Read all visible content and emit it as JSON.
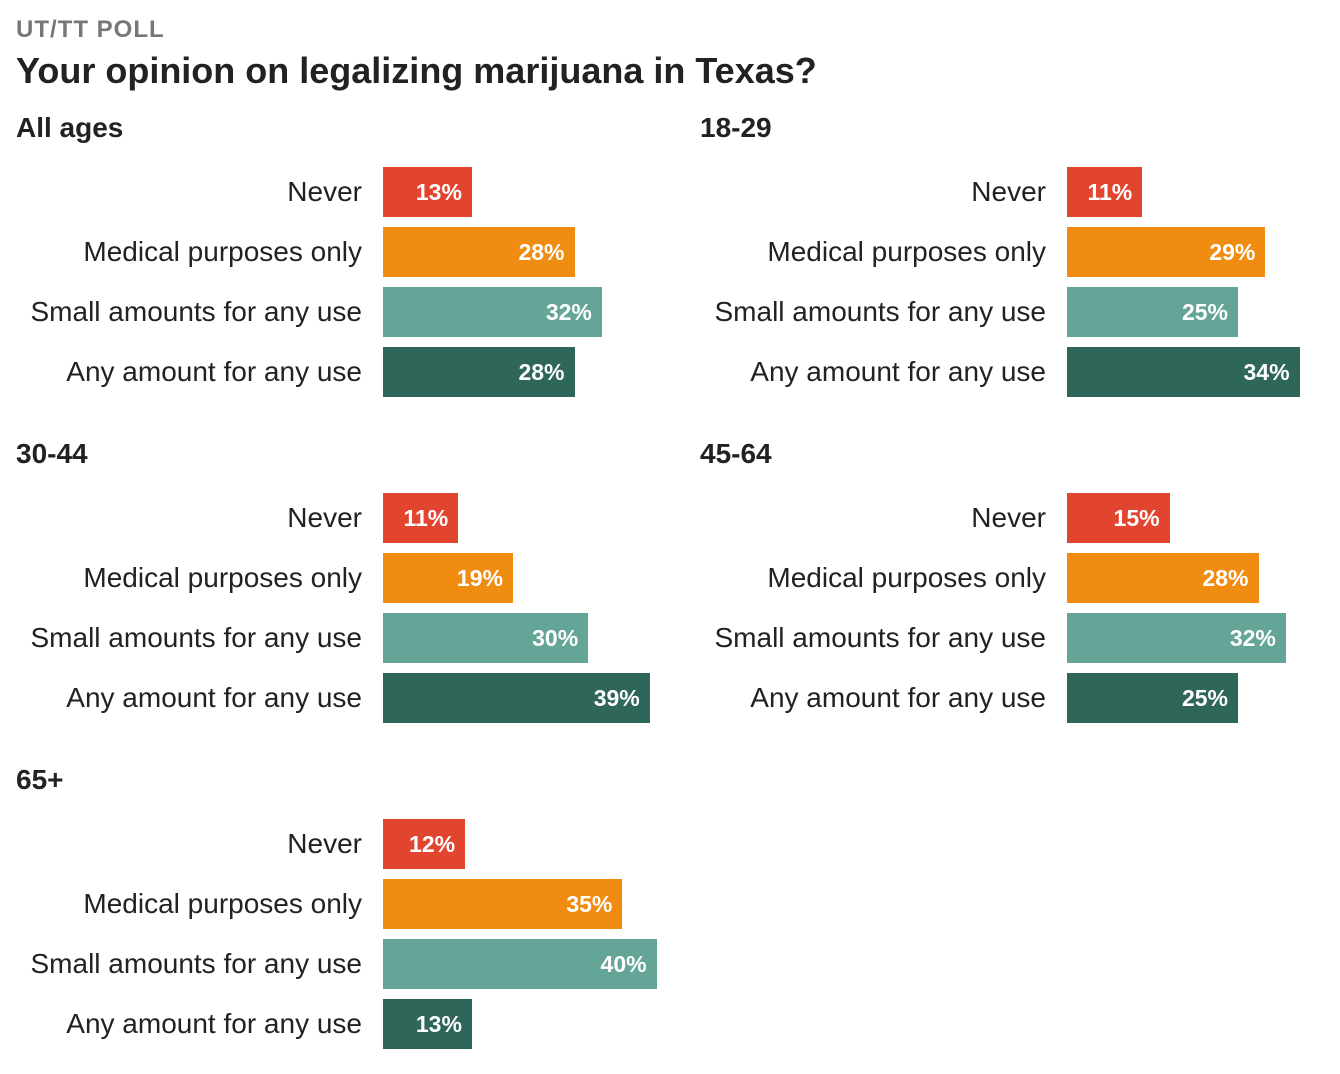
{
  "kicker": "UT/TT POLL",
  "title": "Your opinion on legalizing marijuana in Texas?",
  "colors": {
    "Never": "#e2452f",
    "Medical purposes only": "#f08c10",
    "Small amounts for any use": "#64a598",
    "Any amount for any use": "#2e665a"
  },
  "chart_data": [
    {
      "type": "bar",
      "title": "All ages",
      "categories": [
        "Never",
        "Medical purposes only",
        "Small amounts for any use",
        "Any amount for any use"
      ],
      "values": [
        13,
        28,
        32,
        28
      ],
      "labels": [
        "13%",
        "28%",
        "32%",
        "28%"
      ],
      "xlim": [
        0,
        40
      ]
    },
    {
      "type": "bar",
      "title": "18-29",
      "categories": [
        "Never",
        "Medical purposes only",
        "Small amounts for any use",
        "Any amount for any use"
      ],
      "values": [
        11,
        29,
        25,
        34
      ],
      "labels": [
        "11%",
        "29%",
        "25%",
        "34%"
      ],
      "xlim": [
        0,
        40
      ]
    },
    {
      "type": "bar",
      "title": "30-44",
      "categories": [
        "Never",
        "Medical purposes only",
        "Small amounts for any use",
        "Any amount for any use"
      ],
      "values": [
        11,
        19,
        30,
        39
      ],
      "labels": [
        "11%",
        "19%",
        "30%",
        "39%"
      ],
      "xlim": [
        0,
        40
      ]
    },
    {
      "type": "bar",
      "title": "45-64",
      "categories": [
        "Never",
        "Medical purposes only",
        "Small amounts for any use",
        "Any amount for any use"
      ],
      "values": [
        15,
        28,
        32,
        25
      ],
      "labels": [
        "15%",
        "28%",
        "32%",
        "25%"
      ],
      "xlim": [
        0,
        40
      ]
    },
    {
      "type": "bar",
      "title": "65+",
      "categories": [
        "Never",
        "Medical purposes only",
        "Small amounts for any use",
        "Any amount for any use"
      ],
      "values": [
        12,
        35,
        40,
        13
      ],
      "labels": [
        "12%",
        "35%",
        "40%",
        "13%"
      ],
      "xlim": [
        0,
        40
      ]
    }
  ]
}
